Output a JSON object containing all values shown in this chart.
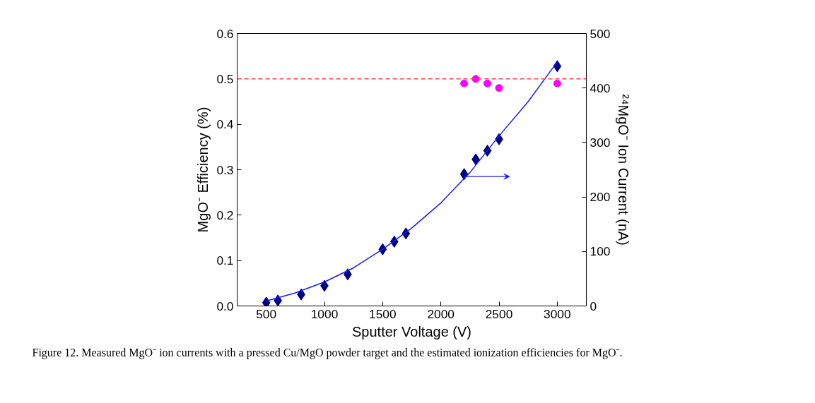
{
  "chart_data": {
    "type": "scatter",
    "xlabel": "Sputter Voltage (V)",
    "ylabel": "MgO⁻ Efficiency (%)",
    "y2label": "²⁴MgO⁻ Ion Current (nA)",
    "xlim": [
      250,
      3250
    ],
    "xticks": [
      500,
      1000,
      1500,
      2000,
      2500,
      3000
    ],
    "ylim": [
      0,
      0.6
    ],
    "yticks": [
      {
        "value": 0,
        "label": "0.0"
      },
      0.1,
      0.2,
      0.3,
      0.4,
      0.5,
      0.6
    ],
    "y2lim": [
      0,
      500
    ],
    "y2ticks": [
      0,
      100,
      200,
      300,
      400,
      500
    ],
    "grid": false,
    "series": [
      {
        "marker": "circle",
        "color": "#ff00ff",
        "x": [
          2200,
          2300,
          2400,
          2500,
          3000
        ],
        "values": [
          0.49,
          0.5,
          0.49,
          0.48,
          0.49
        ]
      },
      {
        "type": "scatter",
        "marker": "diamond",
        "axis": "y2",
        "color": "#000080",
        "x": [
          500,
          600,
          800,
          1000,
          1200,
          1500,
          1600,
          1700,
          2200,
          2300,
          2400,
          2500,
          3000
        ],
        "values": [
          6,
          10,
          21,
          37,
          58,
          104,
          118,
          133,
          242,
          269,
          285,
          306,
          440
        ]
      },
      {
        "type": "line",
        "line_style": "solid",
        "axis": "y2",
        "color": "#1a1aff",
        "x": [
          500,
          750,
          1000,
          1250,
          1500,
          1750,
          2000,
          2250,
          2500,
          2750,
          3000
        ],
        "values": [
          9,
          24,
          44,
          70,
          104,
          143,
          189,
          245,
          312,
          375,
          448
        ]
      }
    ],
    "ref_lines": [
      {
        "axis": "y",
        "value": 0.5,
        "label": null,
        "color": "#ff4040",
        "line_style": "dashed"
      }
    ],
    "annotations": [
      "Figure 12. Measured MgO⁻ ion currents with a pressed Cu/MgO powder target and the estimated ionization efficiencies for MgO⁻."
    ]
  }
}
